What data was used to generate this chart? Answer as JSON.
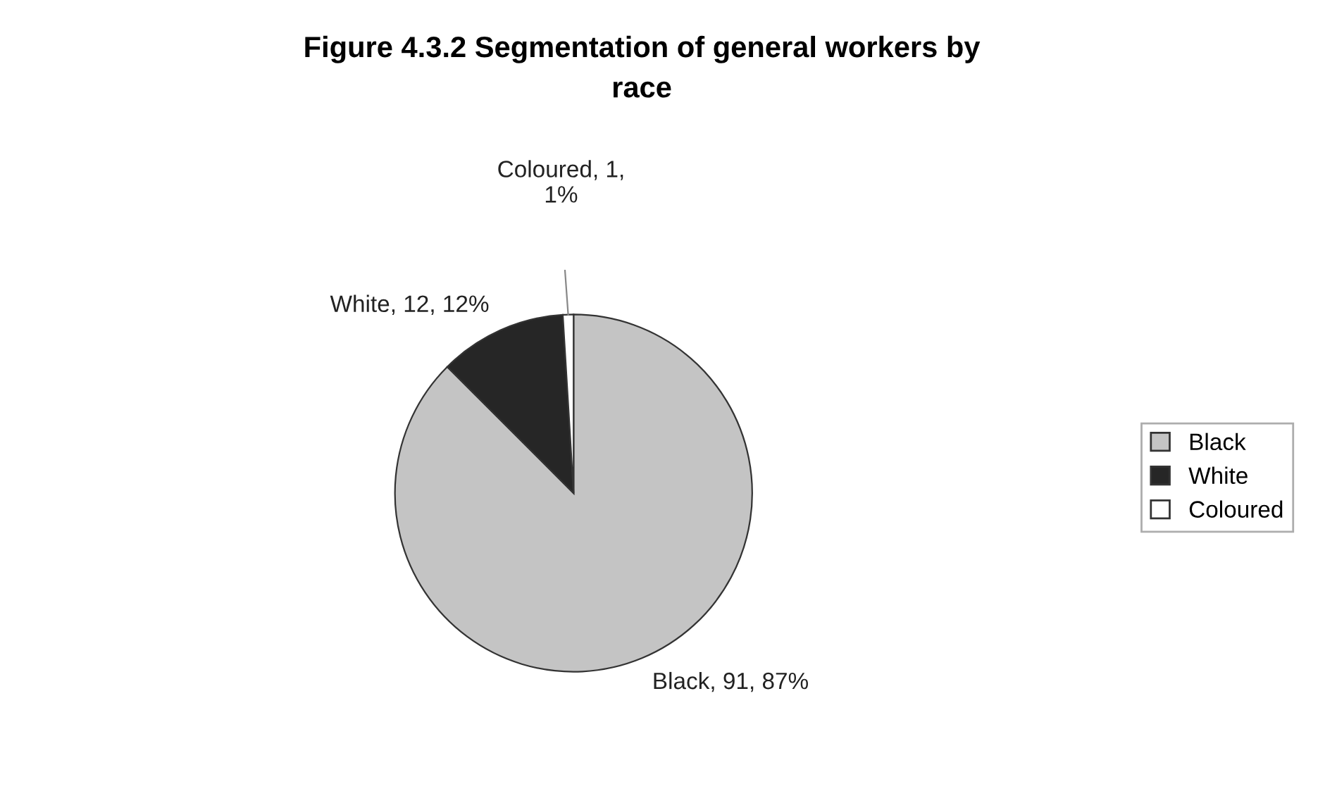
{
  "chart_data": {
    "type": "pie",
    "title": "Figure 4.3.2 Segmentation of general workers by\nrace",
    "categories": [
      "Black",
      "White",
      "Coloured"
    ],
    "values": [
      91,
      12,
      1
    ],
    "colors": [
      "#c4c4c4",
      "#262626",
      "#ffffff"
    ],
    "value_labels": [
      "Black, 91, 87%",
      "White, 12, 12%",
      "Coloured, 1,\n1%"
    ],
    "legend": "right"
  }
}
